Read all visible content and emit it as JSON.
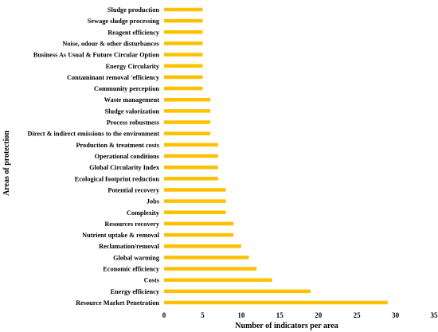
{
  "chart_data": {
    "type": "bar",
    "orientation": "horizontal",
    "categories": [
      "Sludge production",
      "Sewage sludge processing",
      "Reagent efficiency",
      "Noise, odour & other disturbances",
      "Business As Usual & Future Circular Option",
      "Energy Circularity",
      "Contaminant removal 'efficiency",
      "Community perception",
      "Waste management",
      "Sludge valorization",
      "Process robustness",
      "Direct & indirect emissions to the environment",
      "Production & treatment costs",
      "Operational conditions",
      "Global Circularity Index",
      "Ecological footprint reduction",
      "Potential recovery",
      "Jobs",
      "Complexity",
      "Resources recovery",
      "Nutrient uptake & removal",
      "Reclamation/removal",
      "Global warming",
      "Economic efficiency",
      "Costs",
      "Energy efficiency",
      "Resource Market Penetration"
    ],
    "values": [
      5,
      5,
      5,
      5,
      5,
      5,
      5,
      5,
      6,
      6,
      6,
      6,
      7,
      7,
      7,
      7,
      8,
      8,
      8,
      9,
      9,
      10,
      11,
      12,
      14,
      19,
      29
    ],
    "xlabel": "Number of indicators per area",
    "ylabel": "Areas of protection",
    "xlim": [
      0,
      35
    ],
    "xticks": [
      0,
      5,
      10,
      15,
      20,
      25,
      30,
      35
    ],
    "bar_color": "#FFC000",
    "grid": false,
    "legend": "none"
  }
}
